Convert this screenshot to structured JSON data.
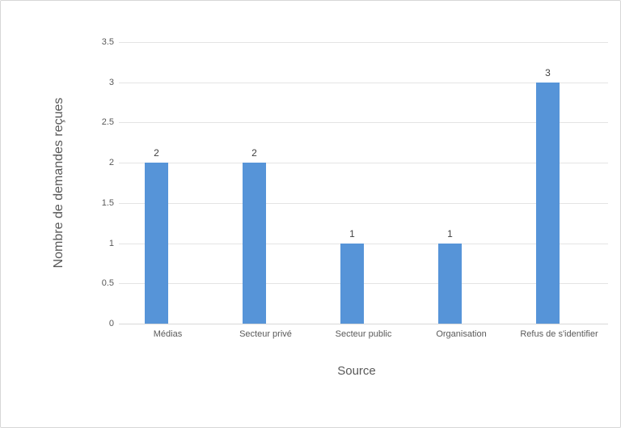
{
  "chart_data": {
    "type": "bar",
    "title": "",
    "categories": [
      "Médias",
      "Secteur privé",
      "Secteur public",
      "Organisation",
      "Refus de s'identifier"
    ],
    "values": [
      2,
      2,
      1,
      1,
      3
    ],
    "data_labels": [
      "2",
      "2",
      "1",
      "1",
      "3"
    ],
    "xlabel": "Source",
    "ylabel": "Nombre de demandes reçues",
    "ylim": [
      0,
      3.5
    ],
    "ytick_step": 0.5,
    "ytick_labels": [
      "0",
      "0.5",
      "1",
      "1.5",
      "2",
      "2.5",
      "3",
      "3.5"
    ],
    "grid": "horizontal",
    "legend": "none",
    "colors": {
      "bar": "#5694D8",
      "gridline": "#E4E4E4",
      "axis_line": "#D9D9D9",
      "tick_label": "#595959",
      "axis_title": "#595959",
      "data_label": "#3F3F3F",
      "canvas_border": "#D7D7D7",
      "background": "#FFFFFF"
    }
  }
}
